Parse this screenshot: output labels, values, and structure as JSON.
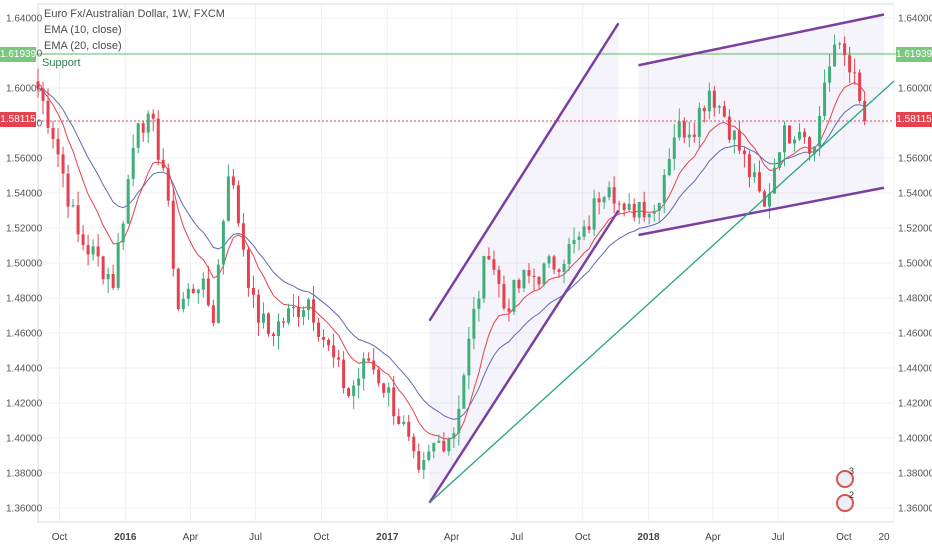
{
  "legend": {
    "title": "Euro Fx/Australian Dollar, 1W, FXCM",
    "ema10": "EMA (10, close)",
    "ema20": "EMA (20, close)"
  },
  "annotations": {
    "support_label": "Support",
    "support_price": "1.61939",
    "last_price": "1.58115",
    "idea_badges": [
      "3",
      "2"
    ]
  },
  "colors": {
    "up": "#3fae7a",
    "down": "#e5424f",
    "ema10": "#e5424f",
    "ema20": "#5b6bb0",
    "channel": "#7b3fa0",
    "trendline": "#26a67a",
    "support": "#7bc77e",
    "price_line": "#e5424f"
  },
  "chart_data": {
    "type": "candlestick",
    "symbol": "EURAUD",
    "timeframe": "1W",
    "x_ticks": [
      "Oct",
      "2016",
      "Apr",
      "Jul",
      "Oct",
      "2017",
      "Apr",
      "Jul",
      "Oct",
      "2018",
      "Apr",
      "Jul",
      "Oct",
      "20"
    ],
    "y_ticks": [
      "1.36000",
      "1.38000",
      "1.40000",
      "1.42000",
      "1.44000",
      "1.46000",
      "1.48000",
      "1.50000",
      "1.52000",
      "1.54000",
      "1.56000",
      "1.58000",
      "1.60000",
      "1.62000",
      "1.64000"
    ],
    "ylim": [
      1.352,
      1.648
    ],
    "x_range": [
      "2015-09-01",
      "2018-12-10"
    ],
    "support_level": 1.61939,
    "last_price": 1.58115,
    "waypoints": [
      [
        "2015-09-01",
        1.6
      ],
      [
        "2015-09-22",
        1.575
      ],
      [
        "2015-10-27",
        1.515
      ],
      [
        "2015-11-17",
        1.505
      ],
      [
        "2015-12-15",
        1.49
      ],
      [
        "2016-01-19",
        1.585
      ],
      [
        "2016-02-09",
        1.575
      ],
      [
        "2016-02-23",
        1.555
      ],
      [
        "2016-03-15",
        1.475
      ],
      [
        "2016-04-12",
        1.49
      ],
      [
        "2016-05-03",
        1.47
      ],
      [
        "2016-05-24",
        1.555
      ],
      [
        "2016-06-14",
        1.51
      ],
      [
        "2016-06-28",
        1.475
      ],
      [
        "2016-07-19",
        1.46
      ],
      [
        "2016-08-16",
        1.47
      ],
      [
        "2016-09-13",
        1.48
      ],
      [
        "2016-10-11",
        1.45
      ],
      [
        "2016-11-08",
        1.425
      ],
      [
        "2016-12-06",
        1.445
      ],
      [
        "2017-01-03",
        1.425
      ],
      [
        "2017-01-24",
        1.405
      ],
      [
        "2017-02-14",
        1.375
      ],
      [
        "2017-03-07",
        1.395
      ],
      [
        "2017-04-04",
        1.405
      ],
      [
        "2017-05-02",
        1.47
      ],
      [
        "2017-05-23",
        1.51
      ],
      [
        "2017-06-13",
        1.475
      ],
      [
        "2017-07-11",
        1.49
      ],
      [
        "2017-08-08",
        1.495
      ],
      [
        "2017-09-05",
        1.505
      ],
      [
        "2017-10-03",
        1.515
      ],
      [
        "2017-10-24",
        1.54
      ],
      [
        "2017-11-07",
        1.55
      ],
      [
        "2017-11-28",
        1.525
      ],
      [
        "2017-12-19",
        1.535
      ],
      [
        "2018-01-09",
        1.53
      ],
      [
        "2018-02-06",
        1.575
      ],
      [
        "2018-03-06",
        1.58
      ],
      [
        "2018-03-27",
        1.6
      ],
      [
        "2018-04-17",
        1.585
      ],
      [
        "2018-05-08",
        1.565
      ],
      [
        "2018-05-29",
        1.545
      ],
      [
        "2018-06-12",
        1.53
      ],
      [
        "2018-07-03",
        1.57
      ],
      [
        "2018-07-31",
        1.58
      ],
      [
        "2018-08-21",
        1.565
      ],
      [
        "2018-09-04",
        1.605
      ],
      [
        "2018-09-25",
        1.625
      ],
      [
        "2018-10-09",
        1.615
      ],
      [
        "2018-10-23",
        1.59
      ],
      [
        "2018-10-30",
        1.581
      ]
    ],
    "ascending_channel_upper": [
      [
        "2017-03-01",
        1.467
      ],
      [
        "2017-11-20",
        1.637
      ]
    ],
    "ascending_channel_lower": [
      [
        "2017-03-01",
        1.363
      ],
      [
        "2017-11-20",
        1.53
      ]
    ],
    "rising_wedge_upper": [
      [
        "2017-12-18",
        1.613
      ],
      [
        "2018-11-26",
        1.642
      ]
    ],
    "rising_wedge_lower": [
      [
        "2017-12-18",
        1.516
      ],
      [
        "2018-11-26",
        1.543
      ]
    ],
    "long_trendline": [
      [
        "2017-03-01",
        1.363
      ],
      [
        "2018-12-10",
        1.604
      ]
    ]
  }
}
